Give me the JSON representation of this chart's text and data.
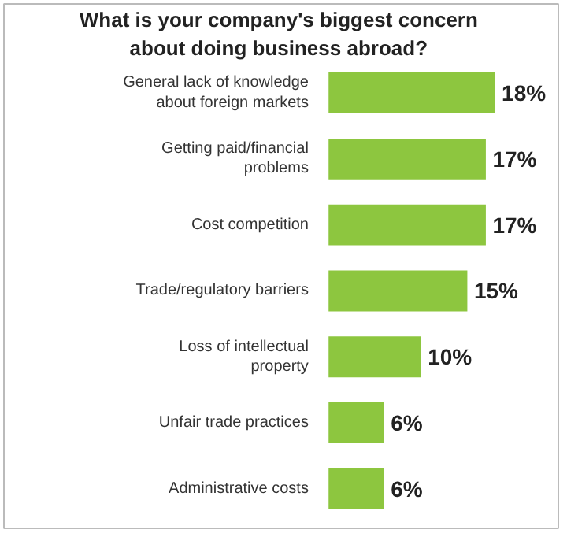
{
  "chart_data": {
    "type": "bar",
    "orientation": "horizontal",
    "title": "What is your company's biggest concern about doing business abroad?",
    "categories": [
      "General lack of knowledge about foreign markets",
      "Getting paid/financial problems",
      "Cost competition",
      "Trade/regulatory barriers",
      "Loss of intellectual property",
      "Unfair trade practices",
      "Administrative costs"
    ],
    "values": [
      18,
      17,
      17,
      15,
      10,
      6,
      6
    ],
    "value_labels": [
      "18%",
      "17%",
      "17%",
      "15%",
      "10%",
      "6%",
      "6%"
    ],
    "color": "#8dc63f"
  }
}
